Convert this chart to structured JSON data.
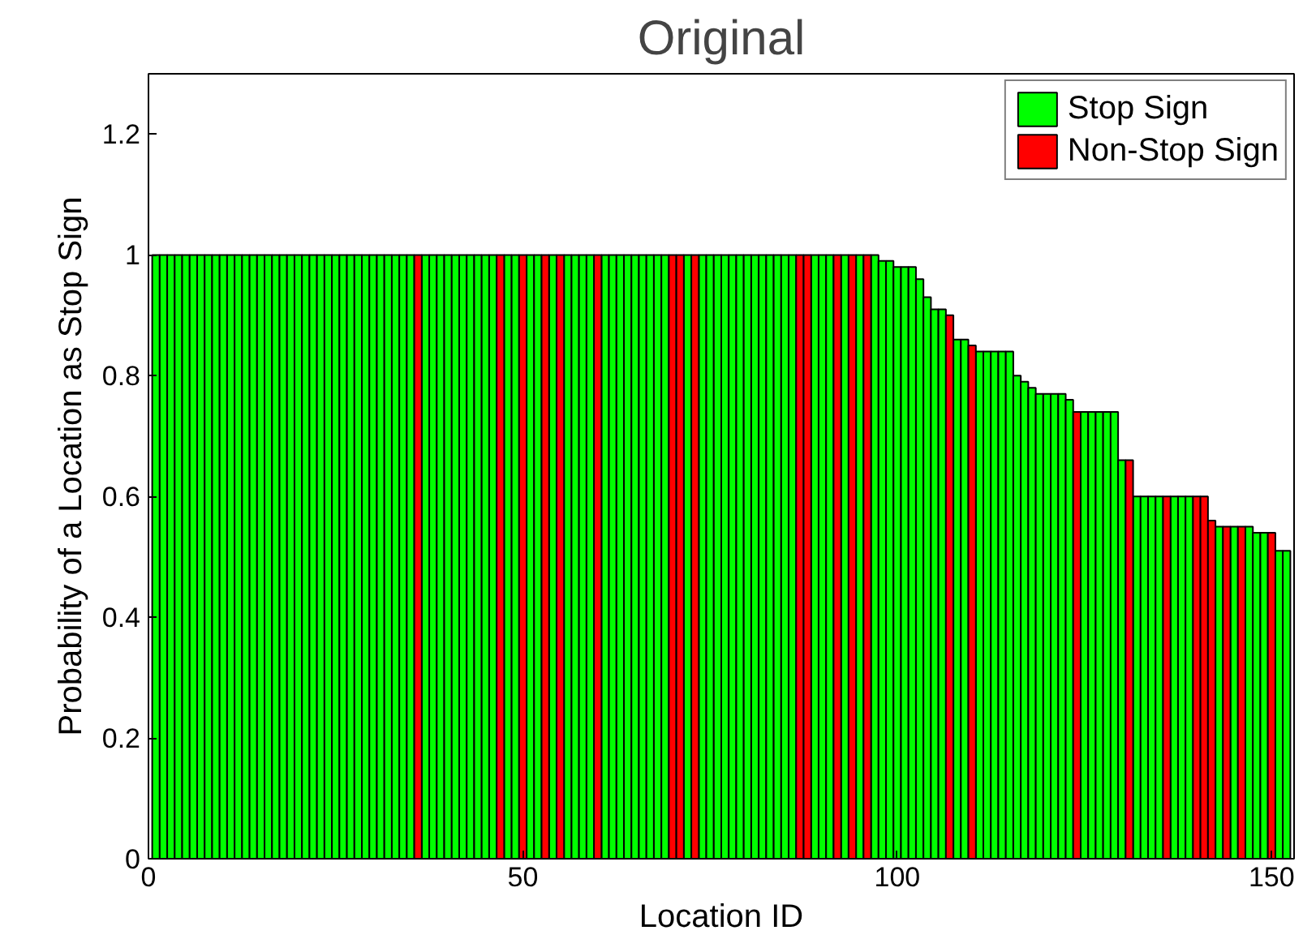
{
  "chart_data": {
    "type": "bar",
    "title": "Original",
    "xlabel": "Location ID",
    "ylabel": "Probability of a Location as Stop Sign",
    "x": [
      1,
      2,
      3,
      4,
      5,
      6,
      7,
      8,
      9,
      10,
      11,
      12,
      13,
      14,
      15,
      16,
      17,
      18,
      19,
      20,
      21,
      22,
      23,
      24,
      25,
      26,
      27,
      28,
      29,
      30,
      31,
      32,
      33,
      34,
      35,
      36,
      37,
      38,
      39,
      40,
      41,
      42,
      43,
      44,
      45,
      46,
      47,
      48,
      49,
      50,
      51,
      52,
      53,
      54,
      55,
      56,
      57,
      58,
      59,
      60,
      61,
      62,
      63,
      64,
      65,
      66,
      67,
      68,
      69,
      70,
      71,
      72,
      73,
      74,
      75,
      76,
      77,
      78,
      79,
      80,
      81,
      82,
      83,
      84,
      85,
      86,
      87,
      88,
      89,
      90,
      91,
      92,
      93,
      94,
      95,
      96,
      97,
      98,
      99,
      100,
      101,
      102,
      103,
      104,
      105,
      106,
      107,
      108,
      109,
      110,
      111,
      112,
      113,
      114,
      115,
      116,
      117,
      118,
      119,
      120,
      121,
      122,
      123,
      124,
      125,
      126,
      127,
      128,
      129,
      130,
      131,
      132,
      133,
      134,
      135,
      136,
      137,
      138,
      139,
      140,
      141,
      142,
      143,
      144,
      145,
      146,
      147,
      148,
      149,
      150,
      151,
      152
    ],
    "series": [
      {
        "name": "Stop Sign",
        "color": "#00ff00",
        "values": [
          1,
          1,
          1,
          1,
          1,
          1,
          1,
          1,
          1,
          1,
          1,
          1,
          1,
          1,
          1,
          1,
          1,
          1,
          1,
          1,
          1,
          1,
          1,
          1,
          1,
          1,
          1,
          1,
          1,
          1,
          1,
          1,
          1,
          1,
          1,
          null,
          1,
          1,
          1,
          1,
          1,
          1,
          1,
          1,
          1,
          1,
          null,
          1,
          1,
          null,
          1,
          1,
          null,
          1,
          null,
          1,
          1,
          1,
          1,
          null,
          1,
          1,
          1,
          1,
          1,
          1,
          1,
          1,
          1,
          null,
          null,
          1,
          null,
          1,
          1,
          1,
          1,
          1,
          1,
          1,
          1,
          1,
          1,
          1,
          1,
          1,
          null,
          null,
          1,
          1,
          1,
          null,
          1,
          null,
          1,
          null,
          1,
          0.99,
          0.99,
          0.98,
          0.98,
          0.98,
          0.96,
          0.93,
          0.91,
          0.91,
          null,
          0.86,
          0.86,
          null,
          0.84,
          0.84,
          0.84,
          0.84,
          0.84,
          0.8,
          0.79,
          0.78,
          0.77,
          0.77,
          0.77,
          0.77,
          0.76,
          null,
          0.74,
          0.74,
          0.74,
          0.74,
          0.74,
          0.66,
          null,
          0.6,
          0.6,
          0.6,
          0.6,
          null,
          0.6,
          0.6,
          0.6,
          null,
          null,
          null,
          0.55,
          null,
          0.55,
          null,
          0.55,
          0.54,
          0.54,
          null,
          0.51,
          0.51
        ]
      },
      {
        "name": "Non-Stop Sign",
        "color": "#ff0000",
        "values": [
          null,
          null,
          null,
          null,
          null,
          null,
          null,
          null,
          null,
          null,
          null,
          null,
          null,
          null,
          null,
          null,
          null,
          null,
          null,
          null,
          null,
          null,
          null,
          null,
          null,
          null,
          null,
          null,
          null,
          null,
          null,
          null,
          null,
          null,
          null,
          1,
          null,
          null,
          null,
          null,
          null,
          null,
          null,
          null,
          null,
          null,
          1,
          null,
          null,
          1,
          null,
          null,
          1,
          null,
          1,
          null,
          null,
          null,
          null,
          1,
          null,
          null,
          null,
          null,
          null,
          null,
          null,
          null,
          null,
          1,
          1,
          null,
          1,
          null,
          null,
          null,
          null,
          null,
          null,
          null,
          null,
          null,
          null,
          null,
          null,
          null,
          1,
          1,
          null,
          null,
          null,
          1,
          null,
          1,
          null,
          1,
          null,
          null,
          null,
          null,
          null,
          null,
          null,
          null,
          null,
          null,
          0.9,
          null,
          null,
          0.85,
          null,
          null,
          null,
          null,
          null,
          null,
          null,
          null,
          null,
          null,
          null,
          null,
          null,
          0.74,
          null,
          null,
          null,
          null,
          null,
          null,
          0.66,
          null,
          null,
          null,
          null,
          0.6,
          null,
          null,
          null,
          0.6,
          0.6,
          0.56,
          null,
          0.55,
          null,
          0.55,
          null,
          null,
          null,
          0.54,
          null,
          null
        ]
      }
    ],
    "xlim": [
      0,
      153
    ],
    "xticks": [
      0,
      50,
      100,
      150
    ],
    "ylim": [
      0,
      1.3
    ],
    "yticks": [
      0,
      0.2,
      0.4,
      0.6,
      0.8,
      1,
      1.2
    ],
    "grid": false,
    "legend": "top right"
  }
}
